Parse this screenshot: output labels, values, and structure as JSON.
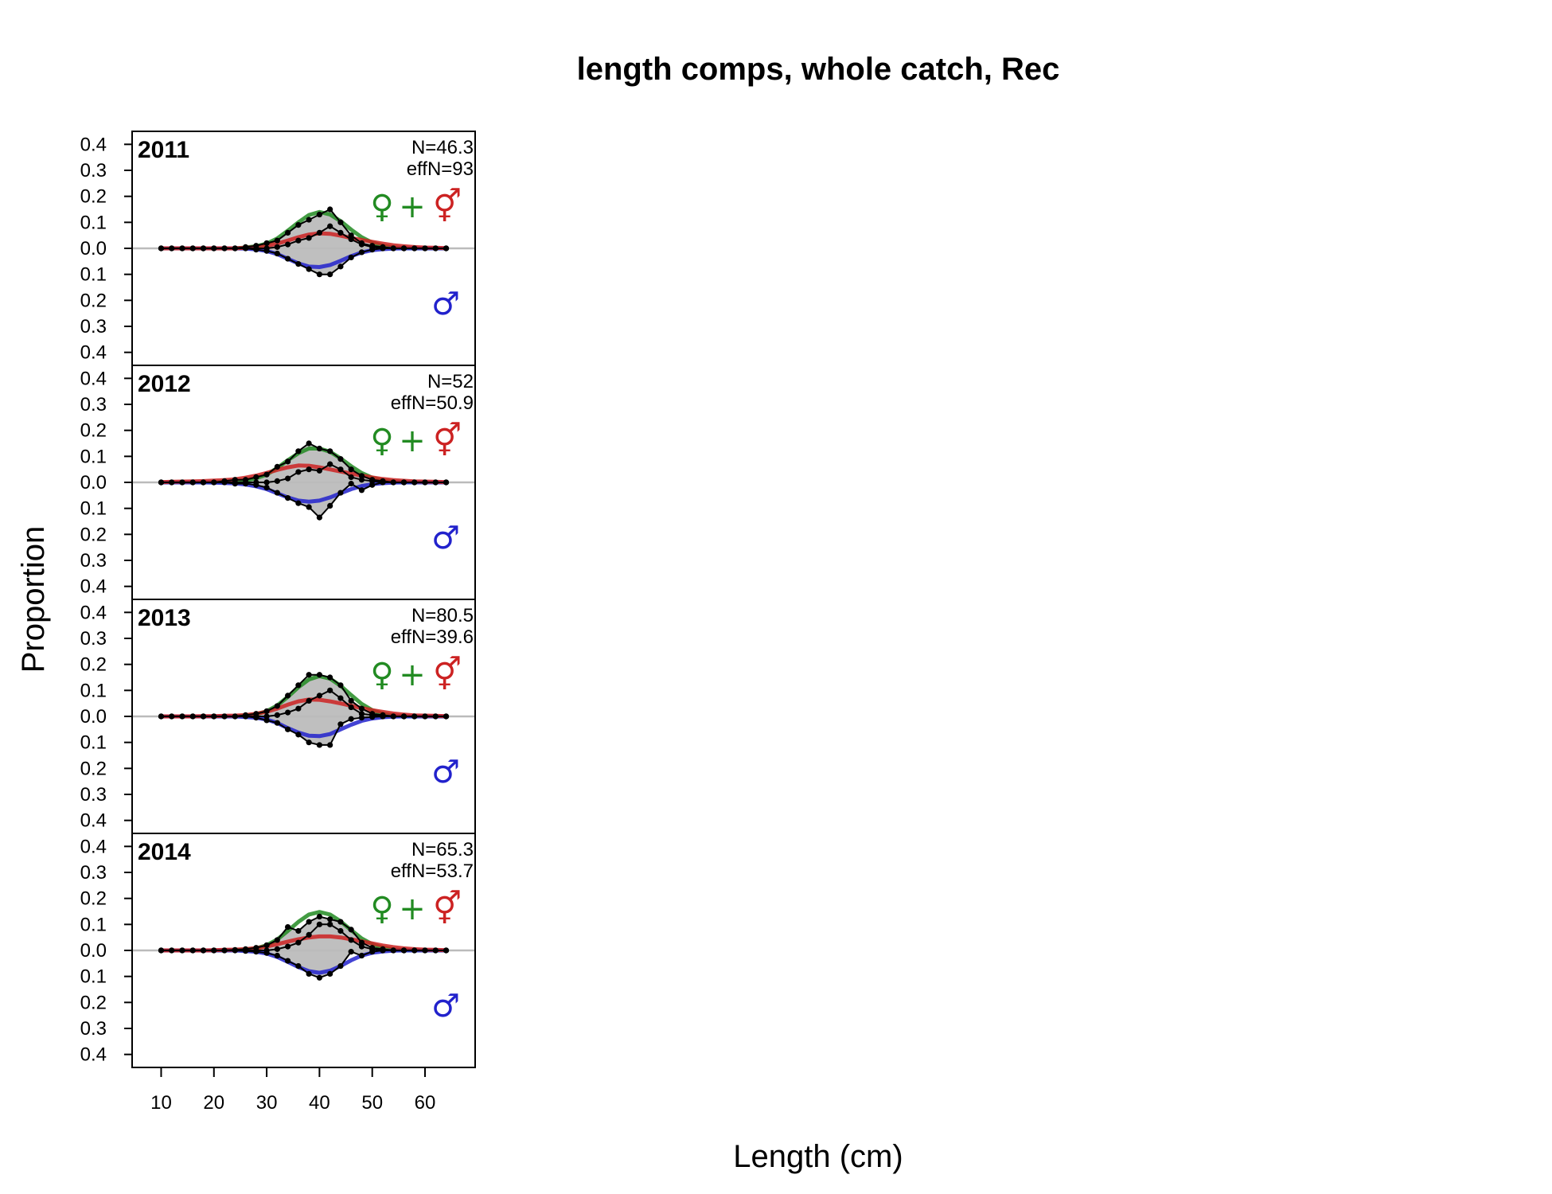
{
  "chart_data": {
    "type": "area",
    "title": "length comps, whole catch, Rec",
    "xlabel": "Length (cm)",
    "ylabel": "Proportion",
    "xlim": [
      4.5,
      69.5
    ],
    "ylim": [
      -0.45,
      0.45
    ],
    "x_ticks": [
      10,
      20,
      30,
      40,
      50,
      60
    ],
    "y_ticks": [
      0.4,
      0.3,
      0.2,
      0.1,
      0.0,
      0.1,
      0.2,
      0.3,
      0.4
    ],
    "y_tick_values": [
      0.4,
      0.3,
      0.2,
      0.1,
      0.0,
      -0.1,
      -0.2,
      -0.3,
      -0.4
    ],
    "colors": {
      "female": "#228B22",
      "male": "#2222CC",
      "combined": "#CC2222",
      "observed": "#000000",
      "observed_fill": "#BFBFBF",
      "zero_line": "#BBBBBB"
    },
    "symbols": {
      "female": "♀",
      "male": "♂",
      "plus": "+",
      "combined": "⚥"
    },
    "bins": [
      10,
      12,
      14,
      16,
      18,
      20,
      22,
      24,
      26,
      28,
      30,
      32,
      34,
      36,
      38,
      40,
      42,
      44,
      46,
      48,
      50,
      52,
      54,
      56,
      58,
      60,
      62,
      64
    ],
    "panels": [
      {
        "year": "2011",
        "N": "N=46.3",
        "effN": "effN=93",
        "female_obs": [
          0,
          0,
          0,
          0,
          0,
          0,
          0,
          0,
          0.005,
          0.01,
          0.02,
          0.03,
          0.06,
          0.09,
          0.11,
          0.13,
          0.15,
          0.1,
          0.05,
          0.02,
          0.01,
          0.005,
          0,
          0,
          0,
          0,
          0,
          0
        ],
        "combined_obs": [
          0,
          0,
          0,
          0,
          0,
          0,
          0,
          0,
          0,
          0,
          0,
          0.005,
          0.015,
          0.03,
          0.04,
          0.06,
          0.085,
          0.06,
          0.035,
          0.015,
          0.005,
          0,
          0,
          0,
          0,
          0,
          0,
          0
        ],
        "male_obs": [
          0,
          0,
          0,
          0,
          0,
          0,
          0,
          0,
          0,
          0.005,
          0.01,
          0.02,
          0.04,
          0.06,
          0.08,
          0.1,
          0.1,
          0.07,
          0.035,
          0.015,
          0.005,
          0,
          0,
          0,
          0,
          0,
          0,
          0
        ],
        "female_exp": [
          0,
          0,
          0,
          0,
          0,
          0,
          0,
          0,
          0.003,
          0.008,
          0.018,
          0.038,
          0.068,
          0.1,
          0.128,
          0.14,
          0.13,
          0.105,
          0.072,
          0.043,
          0.022,
          0.01,
          0.004,
          0.001,
          0,
          0,
          0,
          0
        ],
        "combined_exp": [
          0,
          0,
          0,
          0,
          0,
          0,
          0,
          0,
          0.002,
          0.005,
          0.01,
          0.018,
          0.03,
          0.043,
          0.053,
          0.058,
          0.056,
          0.049,
          0.04,
          0.032,
          0.025,
          0.018,
          0.012,
          0.008,
          0.005,
          0.003,
          0.002,
          0.001
        ],
        "male_exp": [
          0,
          0,
          0,
          0,
          0,
          0,
          0,
          0,
          0.001,
          0.004,
          0.01,
          0.022,
          0.04,
          0.058,
          0.07,
          0.072,
          0.064,
          0.048,
          0.03,
          0.016,
          0.007,
          0.003,
          0.001,
          0,
          0,
          0,
          0,
          0
        ]
      },
      {
        "year": "2012",
        "N": "N=52",
        "effN": "effN=50.9",
        "female_obs": [
          0,
          0,
          0,
          0,
          0,
          0,
          0.005,
          0.01,
          0.01,
          0.02,
          0.03,
          0.06,
          0.08,
          0.12,
          0.15,
          0.13,
          0.12,
          0.09,
          0.05,
          0.025,
          0.01,
          0.005,
          0,
          0,
          0,
          0,
          0,
          0
        ],
        "combined_obs": [
          0,
          0,
          0,
          0,
          0,
          0,
          0,
          0,
          0,
          0,
          0,
          0.005,
          0.015,
          0.04,
          0.05,
          0.045,
          0.07,
          0.05,
          0.02,
          0.01,
          0.005,
          0,
          0,
          0,
          0,
          0,
          0,
          0
        ],
        "male_obs": [
          0,
          0,
          0,
          0,
          0,
          0,
          0,
          0.005,
          0.005,
          0.01,
          0.02,
          0.04,
          0.06,
          0.08,
          0.095,
          0.135,
          0.09,
          0.04,
          0.005,
          0.03,
          0.01,
          0,
          0,
          0,
          0,
          0,
          0,
          0
        ],
        "female_exp": [
          0,
          0,
          0,
          0,
          0,
          0.001,
          0.002,
          0.004,
          0.008,
          0.016,
          0.03,
          0.055,
          0.085,
          0.112,
          0.13,
          0.13,
          0.118,
          0.092,
          0.062,
          0.036,
          0.018,
          0.008,
          0.003,
          0.001,
          0,
          0,
          0,
          0
        ],
        "combined_exp": [
          0.001,
          0.002,
          0.003,
          0.004,
          0.005,
          0.007,
          0.009,
          0.012,
          0.018,
          0.026,
          0.036,
          0.048,
          0.058,
          0.065,
          0.064,
          0.058,
          0.05,
          0.042,
          0.034,
          0.026,
          0.019,
          0.013,
          0.009,
          0.006,
          0.004,
          0.003,
          0.002,
          0.001
        ],
        "male_exp": [
          0,
          0,
          0,
          0,
          0,
          0.001,
          0.002,
          0.004,
          0.008,
          0.015,
          0.026,
          0.042,
          0.058,
          0.07,
          0.074,
          0.07,
          0.058,
          0.042,
          0.026,
          0.014,
          0.007,
          0.003,
          0.001,
          0,
          0,
          0,
          0,
          0
        ]
      },
      {
        "year": "2013",
        "N": "N=80.5",
        "effN": "effN=39.6",
        "female_obs": [
          0,
          0,
          0,
          0,
          0,
          0,
          0,
          0,
          0.005,
          0.01,
          0.02,
          0.04,
          0.08,
          0.12,
          0.16,
          0.16,
          0.15,
          0.12,
          0.06,
          0.03,
          0.01,
          0.005,
          0,
          0,
          0,
          0,
          0,
          0
        ],
        "combined_obs": [
          0,
          0,
          0,
          0,
          0,
          0,
          0,
          0,
          0,
          0,
          0,
          0.005,
          0.015,
          0.03,
          0.06,
          0.08,
          0.1,
          0.07,
          0.035,
          0.01,
          0.005,
          0,
          0,
          0,
          0,
          0,
          0,
          0
        ],
        "male_obs": [
          0,
          0,
          0,
          0,
          0,
          0,
          0,
          0,
          0,
          0.005,
          0.015,
          0.025,
          0.05,
          0.07,
          0.1,
          0.11,
          0.11,
          0.03,
          0.01,
          0.005,
          0.002,
          0,
          0,
          0,
          0,
          0,
          0,
          0
        ],
        "female_exp": [
          0,
          0,
          0,
          0,
          0,
          0,
          0,
          0,
          0.003,
          0.008,
          0.02,
          0.042,
          0.075,
          0.112,
          0.142,
          0.155,
          0.145,
          0.118,
          0.082,
          0.048,
          0.024,
          0.01,
          0.004,
          0.001,
          0,
          0,
          0,
          0
        ],
        "combined_exp": [
          0,
          0,
          0,
          0,
          0.001,
          0.001,
          0.002,
          0.003,
          0.005,
          0.01,
          0.018,
          0.03,
          0.045,
          0.058,
          0.065,
          0.064,
          0.058,
          0.05,
          0.041,
          0.032,
          0.024,
          0.017,
          0.011,
          0.007,
          0.004,
          0.003,
          0.002,
          0.001
        ],
        "male_exp": [
          0,
          0,
          0,
          0,
          0,
          0,
          0,
          0,
          0.002,
          0.005,
          0.012,
          0.025,
          0.045,
          0.062,
          0.074,
          0.076,
          0.068,
          0.05,
          0.032,
          0.017,
          0.008,
          0.003,
          0.001,
          0,
          0,
          0,
          0,
          0
        ]
      },
      {
        "year": "2014",
        "N": "N=65.3",
        "effN": "effN=53.7",
        "female_obs": [
          0,
          0,
          0,
          0,
          0,
          0,
          0,
          0.002,
          0.005,
          0.01,
          0.02,
          0.04,
          0.09,
          0.075,
          0.11,
          0.13,
          0.12,
          0.11,
          0.08,
          0.03,
          0.01,
          0.005,
          0,
          0,
          0,
          0,
          0,
          0
        ],
        "combined_obs": [
          0,
          0,
          0,
          0,
          0,
          0,
          0,
          0,
          0,
          0,
          0,
          0.005,
          0.015,
          0.03,
          0.06,
          0.1,
          0.1,
          0.075,
          0.04,
          0.015,
          0.005,
          0,
          0,
          0,
          0,
          0,
          0,
          0
        ],
        "male_obs": [
          0,
          0,
          0,
          0,
          0,
          0,
          0,
          0,
          0.002,
          0.005,
          0.01,
          0.02,
          0.04,
          0.06,
          0.09,
          0.105,
          0.09,
          0.06,
          0.005,
          0.02,
          0.005,
          0,
          0,
          0,
          0,
          0,
          0,
          0
        ],
        "female_exp": [
          0,
          0,
          0,
          0,
          0,
          0,
          0,
          0.001,
          0.003,
          0.008,
          0.02,
          0.042,
          0.075,
          0.11,
          0.138,
          0.148,
          0.138,
          0.112,
          0.078,
          0.046,
          0.024,
          0.011,
          0.004,
          0.001,
          0,
          0,
          0,
          0
        ],
        "combined_exp": [
          0,
          0,
          0,
          0,
          0,
          0.001,
          0.002,
          0.003,
          0.005,
          0.009,
          0.015,
          0.024,
          0.034,
          0.043,
          0.05,
          0.054,
          0.054,
          0.05,
          0.043,
          0.035,
          0.027,
          0.019,
          0.013,
          0.008,
          0.005,
          0.003,
          0.002,
          0.001
        ],
        "male_exp": [
          0,
          0,
          0,
          0,
          0,
          0,
          0,
          0,
          0.002,
          0.005,
          0.012,
          0.025,
          0.044,
          0.064,
          0.08,
          0.086,
          0.078,
          0.06,
          0.038,
          0.02,
          0.009,
          0.004,
          0.001,
          0,
          0,
          0,
          0,
          0
        ]
      }
    ]
  }
}
